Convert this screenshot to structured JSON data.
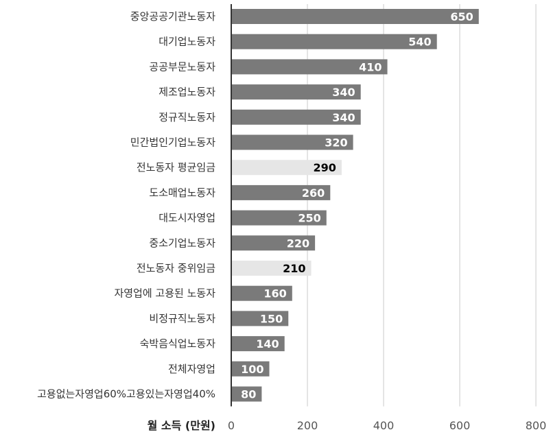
{
  "chart_data": {
    "type": "bar",
    "orientation": "horizontal",
    "xlabel": "월 소득 (만원)",
    "xlim": [
      0,
      800
    ],
    "xticks": [
      0,
      200,
      400,
      600,
      800
    ],
    "grid": true,
    "categories": [
      "중앙공공기관노동자",
      "대기업노동자",
      "공공부문노동자",
      "제조업노동자",
      "정규직노동자",
      "민간법인기업노동자",
      "전노동자 평균임금",
      "도소매업노동자",
      "대도시자영업",
      "중소기업노동자",
      "전노동자 중위임금",
      "자영업에 고용된 노동자",
      "비정규직노동자",
      "숙박음식업노동자",
      "전체자영업",
      "고용없는자영업60%고용있는자영업40%"
    ],
    "values": [
      650,
      540,
      410,
      340,
      340,
      320,
      290,
      260,
      250,
      220,
      210,
      160,
      150,
      140,
      100,
      80
    ],
    "highlighted": [
      false,
      false,
      false,
      false,
      false,
      false,
      true,
      false,
      false,
      false,
      true,
      false,
      false,
      false,
      false,
      false
    ],
    "colors": {
      "bar": "#7a7a7a",
      "highlight_bar": "#e6e6e6",
      "bar_label": "#ffffff",
      "highlight_label": "#000000",
      "grid": "#c8c8c8",
      "axis": "#333333"
    }
  }
}
